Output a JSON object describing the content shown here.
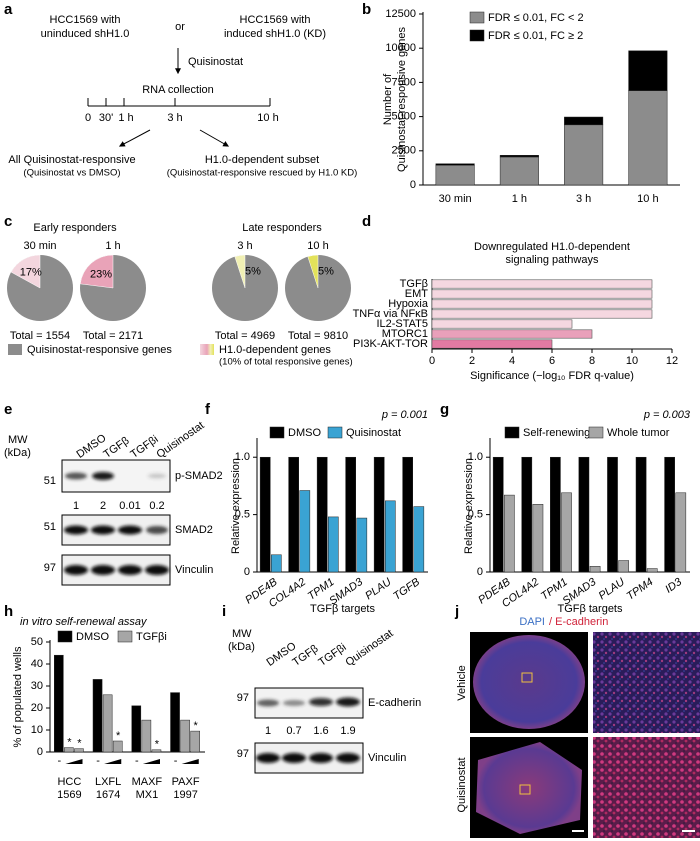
{
  "panel_labels": [
    "a",
    "b",
    "c",
    "d",
    "e",
    "f",
    "g",
    "h",
    "i",
    "j"
  ],
  "panels": {
    "a": {
      "left_group": [
        "HCC1569 with",
        "uninduced shH1.0"
      ],
      "connector": "or",
      "right_group": [
        "HCC1569 with",
        "induced shH1.0 (KD)"
      ],
      "treatment": "Quisinostat",
      "collection": "RNA collection",
      "timepoints": [
        "0",
        "30'",
        "1 h",
        "3 h",
        "10 h"
      ],
      "outcomes": [
        {
          "title": "All Quisinostat-responsive",
          "subtitle": "(Quisinostat vs DMSO)"
        },
        {
          "title": "H1.0-dependent subset",
          "subtitle": "(Quisinostat-responsive rescued by H1.0 KD)"
        }
      ]
    },
    "c": {
      "groups": [
        "Early responders",
        "Late responders"
      ],
      "legend": [
        "Quisinostat-responsive genes",
        "H1.0-dependent genes",
        "(10% of total responsive genes)"
      ]
    },
    "e": {
      "mw_label": [
        "MW",
        "(kDa)"
      ],
      "lanes": [
        "DMSO",
        "TGFβ",
        "TGFβi",
        "Quisinostat"
      ],
      "blots": [
        {
          "mw": "51",
          "label": "p-SMAD2",
          "quant": [
            "1",
            "2",
            "0.01",
            "0.2"
          ]
        },
        {
          "mw": "51",
          "label": "SMAD2"
        },
        {
          "mw": "97",
          "label": "Vinculin"
        }
      ]
    },
    "i": {
      "mw_label": [
        "MW",
        "(kDa)"
      ],
      "lanes": [
        "DMSO",
        "TGFβ",
        "TGFβi",
        "Quisinostat"
      ],
      "blots": [
        {
          "mw": "97",
          "label": "E-cadherin",
          "quant": [
            "1",
            "0.7",
            "1.6",
            "1.9"
          ]
        },
        {
          "mw": "97",
          "label": "Vinculin"
        }
      ]
    },
    "j": {
      "stain_labels": [
        "DAPI",
        "/ E-cadherin"
      ],
      "rows": [
        "Vehicle",
        "Quisinostat"
      ]
    }
  },
  "chart_data": [
    {
      "type": "bar",
      "stacked": true,
      "ylabel": [
        "Number of",
        "Quisinostat-responsive genes"
      ],
      "categories": [
        "30 min",
        "1 h",
        "3 h",
        "10 h"
      ],
      "series": [
        {
          "name": "FDR ≤ 0.01, FC < 2",
          "color": "#8c8c8c",
          "values": [
            1450,
            2050,
            4400,
            6900
          ]
        },
        {
          "name": "FDR ≤ 0.01, FC ≥ 2",
          "color": "#000000",
          "values": [
            104,
            121,
            569,
            2910
          ]
        }
      ],
      "ylim": [
        0,
        12500
      ],
      "yticks": [
        0,
        2500,
        5000,
        7500,
        10000,
        12500
      ]
    },
    {
      "type": "pie",
      "title": "30 min",
      "values": [
        17
      ],
      "value_labels": [
        "17%"
      ],
      "colors": [
        "#f3d6de"
      ],
      "base_color": "#8c8c8c",
      "footer": "Total = 1554"
    },
    {
      "type": "pie",
      "title": "1 h",
      "values": [
        23
      ],
      "value_labels": [
        "23%"
      ],
      "colors": [
        "#e9a3b8"
      ],
      "base_color": "#8c8c8c",
      "footer": "Total = 2171"
    },
    {
      "type": "pie",
      "title": "3 h",
      "values": [
        5
      ],
      "value_labels": [
        "5%"
      ],
      "colors": [
        "#f1f0b4"
      ],
      "base_color": "#8c8c8c",
      "footer": "Total = 4969"
    },
    {
      "type": "pie",
      "title": "10 h",
      "values": [
        5
      ],
      "value_labels": [
        "5%"
      ],
      "colors": [
        "#e3e25a"
      ],
      "base_color": "#8c8c8c",
      "footer": "Total = 9810"
    },
    {
      "type": "barh",
      "title": [
        "Downregulated H1.0-dependent",
        "signaling pathways"
      ],
      "xlabel": "Significance (−log₁₀ FDR q-value)",
      "categories": [
        "TGFβ",
        "EMT",
        "Hypoxia",
        "TNFα via NFκB",
        "IL2-STAT5",
        "MTORC1",
        "PI3K-AKT-TOR"
      ],
      "values": [
        11,
        11,
        11,
        11,
        7,
        8,
        6
      ],
      "colors": [
        "#f5d7e0",
        "#f5d7e0",
        "#f5d7e0",
        "#f5d7e0",
        "#f5d7e0",
        "#e9a0ba",
        "#e27aa2"
      ],
      "xlim": [
        0,
        12
      ],
      "xticks": [
        0,
        2,
        4,
        6,
        8,
        10,
        12
      ]
    },
    {
      "type": "bar",
      "ylabel": "Relative expression",
      "xlabel": "TGFβ targets",
      "annotation": "p = 0.001",
      "categories": [
        "PDE4B",
        "COL4A2",
        "TPM1",
        "SMAD3",
        "PLAU",
        "TGFB"
      ],
      "series": [
        {
          "name": "DMSO",
          "color": "#000000",
          "values": [
            1,
            1,
            1,
            1,
            1,
            1
          ]
        },
        {
          "name": "Quisinostat",
          "color": "#3aa3d3",
          "values": [
            0.15,
            0.71,
            0.48,
            0.47,
            0.62,
            0.57
          ]
        }
      ],
      "ylim": [
        0,
        1.15
      ],
      "yticks": [
        0,
        0.5,
        {
          "value": 1,
          "label": "1.0"
        }
      ]
    },
    {
      "type": "bar",
      "ylabel": "Relative expression",
      "xlabel": "TGFβ targets",
      "annotation": "p = 0.003",
      "categories": [
        "PDE4B",
        "COL4A2",
        "TPM1",
        "SMAD3",
        "PLAU",
        "TPM4",
        "ID3"
      ],
      "series": [
        {
          "name": "Self-renewing",
          "color": "#000000",
          "values": [
            1,
            1,
            1,
            1,
            1,
            1,
            1
          ]
        },
        {
          "name": "Whole tumor",
          "color": "#a6a6a6",
          "values": [
            0.67,
            0.59,
            0.69,
            0.05,
            0.1,
            0.03,
            0.69
          ]
        }
      ],
      "ylim": [
        0,
        1.15
      ],
      "yticks": [
        0,
        0.5,
        {
          "value": 1,
          "label": "1.0"
        }
      ]
    },
    {
      "type": "bar",
      "title": "in vitro self-renewal assay",
      "ylabel": "% of populated wells",
      "control_label": "-",
      "categories": [
        [
          "HCC",
          "1569"
        ],
        [
          "LXFL",
          "1674"
        ],
        [
          "MAXF",
          "MX1"
        ],
        [
          "PAXF",
          "1997"
        ]
      ],
      "series": [
        {
          "name": "DMSO",
          "color": "#000000",
          "values": [
            44,
            33,
            21,
            27
          ]
        },
        {
          "name": "TGFβi",
          "color": "#a6a6a6",
          "values": [
            2,
            26,
            14.5,
            14.5
          ],
          "significance": [
            "*",
            null,
            null,
            null
          ]
        },
        {
          "color": "#a6a6a6",
          "values": [
            1.5,
            5,
            1,
            9.5
          ],
          "significance": [
            "*",
            "*",
            "*",
            "*"
          ]
        }
      ],
      "ylim": [
        0,
        50
      ],
      "yticks": [
        0,
        10,
        20,
        30,
        40,
        50
      ]
    }
  ]
}
